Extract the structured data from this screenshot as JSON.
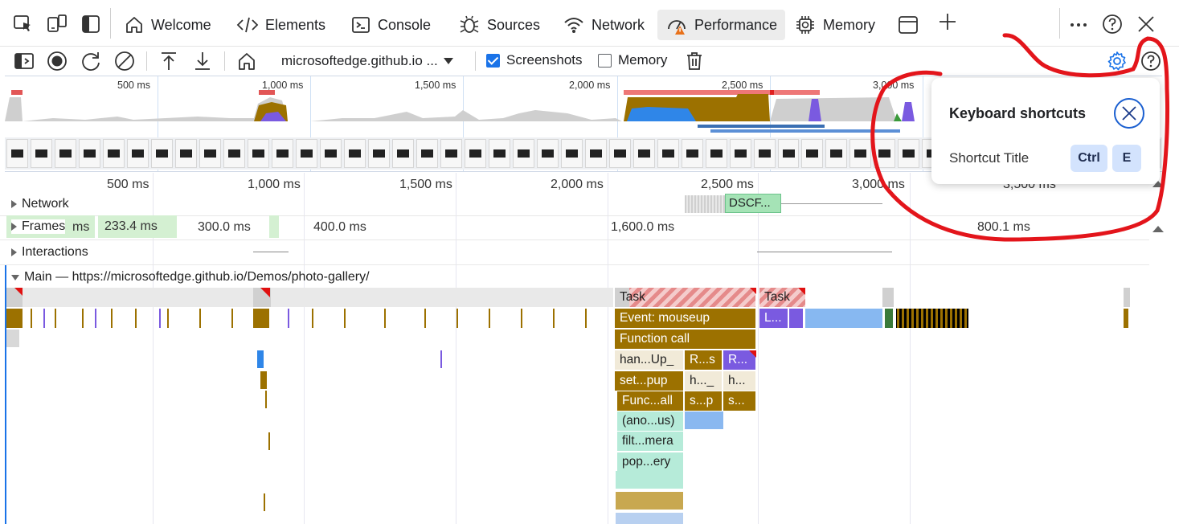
{
  "tabs": [
    {
      "label": "Welcome",
      "icon": "home-icon"
    },
    {
      "label": "Elements",
      "icon": "code-icon"
    },
    {
      "label": "Console",
      "icon": "console-icon"
    },
    {
      "label": "Sources",
      "icon": "bug-icon"
    },
    {
      "label": "Network",
      "icon": "wifi-icon"
    },
    {
      "label": "Performance",
      "icon": "performance-icon",
      "active": true
    },
    {
      "label": "Memory",
      "icon": "chip-icon"
    }
  ],
  "toolbar": {
    "target": "microsoftedge.github.io ...",
    "screenshots_label": "Screenshots",
    "screenshots_checked": true,
    "memory_label": "Memory",
    "memory_checked": false
  },
  "overview": {
    "ticks": [
      "500 ms",
      "1,000 ms",
      "1,500 ms",
      "2,000 ms",
      "2,500 ms",
      "3,000 ms"
    ]
  },
  "ruler": {
    "ticks": [
      "500 ms",
      "1,000 ms",
      "1,500 ms",
      "2,000 ms",
      "2,500 ms",
      "3,000 ms",
      "3,500 ms"
    ]
  },
  "tracks": {
    "network": "Network",
    "network_item": "DSCF...",
    "frames": "Frames",
    "frame_values": [
      "ms",
      "233.4 ms",
      "300.0 ms",
      "400.0 ms",
      "1,600.0 ms",
      "800.1 ms"
    ],
    "interactions": "Interactions",
    "main": "Main — https://microsoftedge.github.io/Demos/photo-gallery/"
  },
  "flame": {
    "task1": "Task",
    "task2": "Task",
    "event": "Event: mouseup",
    "function_call": "Function call",
    "l": "L...",
    "c1": [
      "han...Up_",
      "set...pup",
      "Func...all",
      "(ano...us)",
      "filt...mera",
      "pop...ery"
    ],
    "c2": [
      "R...s",
      "h..._",
      "s...p"
    ],
    "c3": [
      "R...",
      "h...",
      "s..."
    ]
  },
  "popover": {
    "title": "Keyboard shortcuts",
    "row_label": "Shortcut Title",
    "key1": "Ctrl",
    "key2": "E"
  },
  "colors": {
    "accent": "#1a73e8",
    "annotation": "#e3151b",
    "scripting": "#9c7100",
    "rendering": "#7a5ae0"
  }
}
